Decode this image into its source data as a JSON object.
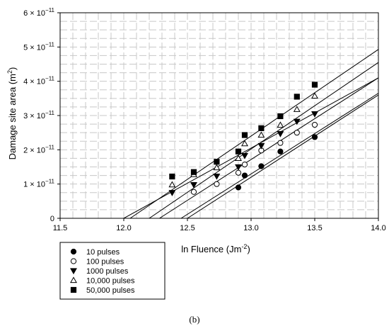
{
  "chart_data": {
    "type": "scatter",
    "caption": "(b)",
    "xlabel": "ln Fluence (Jm",
    "xlabel_sup": "-2",
    "xlabel_end": ")",
    "ylabel": "Damage site area (m",
    "ylabel_sup": "2",
    "ylabel_end": ")",
    "xlim": [
      11.5,
      14.0
    ],
    "ylim": [
      0,
      6e-11
    ],
    "x_ticks": [
      11.5,
      12.0,
      12.5,
      13.0,
      13.5,
      14.0
    ],
    "x_tick_labels": [
      "11.5",
      "12.0",
      "12.5",
      "13.0",
      "13.5",
      "14.0"
    ],
    "y_ticks": [
      0,
      1e-11,
      2e-11,
      3e-11,
      4e-11,
      5e-11,
      6e-11
    ],
    "y_tick_labels": [
      {
        "mantissa": "0",
        "base": "",
        "exp": ""
      },
      {
        "mantissa": "1",
        "base": " × 10",
        "exp": "−11"
      },
      {
        "mantissa": "2",
        "base": " × 10",
        "exp": "−11"
      },
      {
        "mantissa": "3",
        "base": " × 10",
        "exp": "−11"
      },
      {
        "mantissa": "4",
        "base": " × 10",
        "exp": "−11"
      },
      {
        "mantissa": "5",
        "base": " × 10",
        "exp": "−11"
      },
      {
        "mantissa": "6",
        "base": " × 10",
        "exp": "−11"
      }
    ],
    "grid": "dashed",
    "legend_position": "below-left",
    "series": [
      {
        "name": "10 pulses",
        "marker": "filled-circle",
        "x": [
          12.9,
          12.95,
          13.08,
          13.23,
          13.5
        ],
        "y": [
          9e-12,
          1.25e-11,
          1.52e-11,
          1.95e-11,
          2.37e-11
        ],
        "fit_line": {
          "x": [
            12.5,
            14.0
          ],
          "y": [
            0,
            3.6e-11
          ]
        }
      },
      {
        "name": "100 pulses",
        "marker": "open-circle",
        "x": [
          12.55,
          12.73,
          12.9,
          12.95,
          13.08,
          13.23,
          13.36,
          13.5
        ],
        "y": [
          7.7e-12,
          1e-11,
          1.33e-11,
          1.57e-11,
          1.98e-11,
          2.2e-11,
          2.5e-11,
          2.73e-11
        ],
        "fit_line": {
          "x": [
            12.45,
            14.0
          ],
          "y": [
            0,
            3.65e-11
          ]
        }
      },
      {
        "name": "1000 pulses",
        "marker": "filled-triangle-down",
        "x": [
          12.38,
          12.55,
          12.73,
          12.9,
          12.95,
          13.08,
          13.23,
          13.36,
          13.5
        ],
        "y": [
          7.5e-12,
          9.8e-12,
          1.23e-11,
          1.5e-11,
          1.83e-11,
          2.12e-11,
          2.47e-11,
          2.83e-11,
          3.05e-11
        ],
        "fit_line": {
          "x": [
            12.28,
            14.0
          ],
          "y": [
            0,
            4.1e-11
          ]
        }
      },
      {
        "name": "10,000 pulses",
        "marker": "open-triangle-up",
        "x": [
          12.38,
          12.55,
          12.73,
          12.9,
          12.95,
          13.08,
          13.23,
          13.36,
          13.5
        ],
        "y": [
          9.8e-12,
          1.28e-11,
          1.48e-11,
          1.75e-11,
          2.18e-11,
          2.43e-11,
          2.72e-11,
          3.18e-11,
          3.57e-11
        ],
        "fit_line": {
          "x": [
            12.2,
            14.0
          ],
          "y": [
            0,
            4.55e-11
          ]
        }
      },
      {
        "name": "50,000 pulses",
        "marker": "filled-square",
        "x": [
          12.38,
          12.55,
          12.73,
          12.9,
          12.95,
          13.08,
          13.23,
          13.36,
          13.5
        ],
        "y": [
          1.22e-11,
          1.35e-11,
          1.65e-11,
          1.95e-11,
          2.43e-11,
          2.63e-11,
          2.98e-11,
          3.55e-11,
          3.9e-11
        ],
        "fit_line": {
          "x": [
            12.05,
            14.0
          ],
          "y": [
            0,
            4.93e-11
          ]
        }
      }
    ],
    "extra_line": {
      "x": [
        12.0,
        14.0
      ],
      "y": [
        0,
        4.1e-11
      ]
    }
  }
}
